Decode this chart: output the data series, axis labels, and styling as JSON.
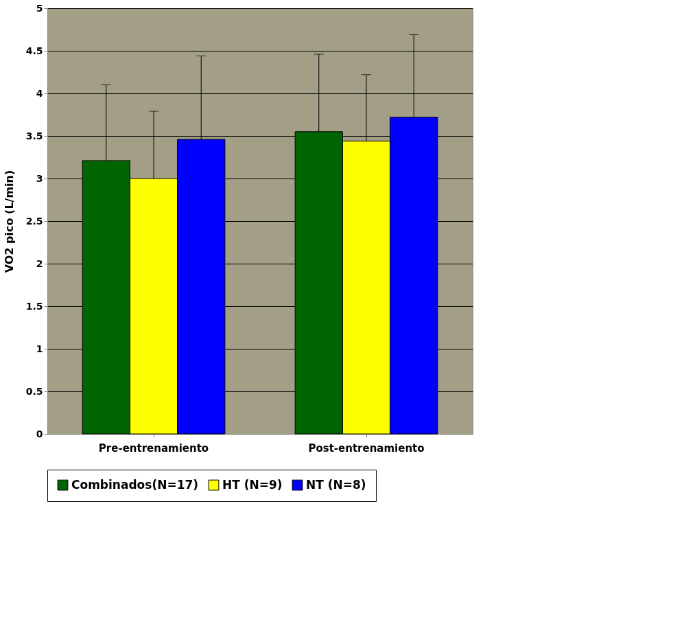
{
  "chart_data": {
    "type": "bar",
    "ylabel": "VO2 pico (L/min)",
    "categories": [
      "Pre-entrenamiento",
      "Post-entrenamiento"
    ],
    "series": [
      {
        "name": "Combinados(N=17)",
        "color": "#006400",
        "values": [
          3.21,
          3.55
        ],
        "errors": [
          [
            3.21,
            4.1
          ],
          [
            3.55,
            4.46
          ]
        ]
      },
      {
        "name": "HT (N=9)",
        "color": "#ffff00",
        "values": [
          3.0,
          3.44
        ],
        "errors": [
          [
            3.0,
            3.79
          ],
          [
            3.44,
            4.22
          ]
        ]
      },
      {
        "name": "NT (N=8)",
        "color": "#0000ff",
        "values": [
          3.46,
          3.72
        ],
        "errors": [
          [
            3.46,
            4.44
          ],
          [
            3.72,
            4.69
          ]
        ]
      }
    ],
    "ylim": [
      0,
      5
    ],
    "yticks": [
      0,
      0.5,
      1,
      1.5,
      2,
      2.5,
      3,
      3.5,
      4,
      4.5,
      5
    ],
    "grid": "y",
    "legend": "bottom"
  }
}
